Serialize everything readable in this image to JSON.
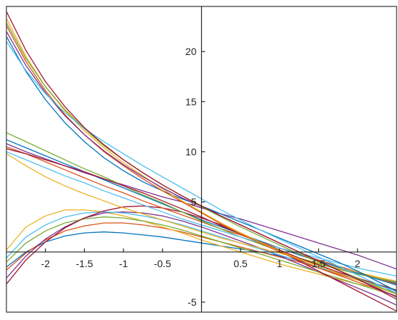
{
  "chart_data": {
    "type": "line",
    "title": "",
    "xlabel": "",
    "ylabel": "",
    "xlim": [
      -2.5,
      2.5
    ],
    "ylim": [
      -6,
      24.5
    ],
    "grid": false,
    "legend": "none",
    "x_ticks": [
      {
        "value": -2,
        "label": "-2"
      },
      {
        "value": -1.5,
        "label": "-1.5"
      },
      {
        "value": -1,
        "label": "-1"
      },
      {
        "value": -0.5,
        "label": "-0.5"
      },
      {
        "value": 0.5,
        "label": "0.5"
      },
      {
        "value": 1,
        "label": "1"
      },
      {
        "value": 1.5,
        "label": "1.5"
      },
      {
        "value": 2,
        "label": "2"
      }
    ],
    "y_ticks": [
      {
        "value": -5,
        "label": "-5"
      },
      {
        "value": 5,
        "label": "5"
      },
      {
        "value": 10,
        "label": "10"
      },
      {
        "value": 15,
        "label": "15"
      },
      {
        "value": 20,
        "label": "20"
      }
    ],
    "palette": [
      "#0072BD",
      "#D95319",
      "#EDB120",
      "#7E2F8E",
      "#77AC30",
      "#4DBEEE",
      "#A2142F"
    ],
    "x": [
      -2.5,
      -2.25,
      -2.0,
      -1.75,
      -1.5,
      -1.25,
      -1.0,
      -0.75,
      -0.5,
      -0.25,
      0.0,
      0.25,
      0.5,
      0.75,
      1.0,
      1.25,
      1.5,
      1.75,
      2.0,
      2.25,
      2.5
    ],
    "series": [
      {
        "color": "#0072BD",
        "values": [
          -1.5,
          0.0,
          1.0,
          1.6,
          1.9,
          2.0,
          1.9,
          1.7,
          1.5,
          1.2,
          0.9,
          0.6,
          0.3,
          0.0,
          -0.4,
          -0.8,
          -1.2,
          -1.6,
          -2.1,
          -2.7,
          -3.3
        ]
      },
      {
        "color": "#D95319",
        "values": [
          -1.8,
          -0.1,
          1.2,
          2.1,
          2.6,
          2.9,
          2.9,
          2.7,
          2.4,
          2.0,
          1.5,
          1.0,
          0.5,
          0.0,
          -0.5,
          -1.0,
          -1.6,
          -2.2,
          -2.8,
          -3.5,
          -4.2
        ]
      },
      {
        "color": "#EDB120",
        "values": [
          0.2,
          2.5,
          3.6,
          4.2,
          4.2,
          4.0,
          3.6,
          3.1,
          2.5,
          1.9,
          1.2,
          0.6,
          0.0,
          -0.6,
          -1.2,
          -1.7,
          -2.2,
          -2.7,
          -3.2,
          -3.6,
          -4.0
        ]
      },
      {
        "color": "#7E2F8E",
        "values": [
          -2.6,
          -0.4,
          1.3,
          2.5,
          3.4,
          3.9,
          4.0,
          3.9,
          3.6,
          3.1,
          2.5,
          1.8,
          1.1,
          0.4,
          -0.4,
          -1.2,
          -2.0,
          -2.8,
          -3.6,
          -4.4,
          -5.3
        ]
      },
      {
        "color": "#77AC30",
        "values": [
          -1.0,
          0.9,
          2.1,
          2.9,
          3.3,
          3.5,
          3.4,
          3.1,
          2.7,
          2.2,
          1.6,
          1.0,
          0.4,
          -0.2,
          -0.8,
          -1.4,
          -2.0,
          -2.6,
          -3.2,
          -3.8,
          -4.4
        ]
      },
      {
        "color": "#4DBEEE",
        "values": [
          -0.6,
          1.5,
          2.7,
          3.5,
          3.9,
          4.0,
          3.9,
          3.6,
          3.2,
          2.7,
          2.1,
          1.5,
          0.9,
          0.3,
          -0.3,
          -0.9,
          -1.5,
          -2.1,
          -2.7,
          -3.3,
          -3.9
        ]
      },
      {
        "color": "#A2142F",
        "values": [
          -3.2,
          -0.8,
          1.0,
          2.4,
          3.4,
          4.1,
          4.5,
          4.6,
          4.4,
          4.0,
          3.4,
          2.7,
          1.9,
          1.0,
          0.1,
          -0.9,
          -1.9,
          -2.9,
          -3.9,
          -4.9,
          -5.9
        ]
      },
      {
        "color": "#0072BD",
        "values": [
          11.2,
          10.4,
          9.6,
          8.8,
          8.0,
          7.2,
          6.4,
          5.6,
          4.8,
          4.0,
          3.2,
          2.5,
          1.8,
          1.1,
          0.4,
          -0.3,
          -0.9,
          -1.5,
          -2.1,
          -2.6,
          -3.1
        ]
      },
      {
        "color": "#D95319",
        "values": [
          10.5,
          9.8,
          9.0,
          8.2,
          7.4,
          6.6,
          5.9,
          5.1,
          4.4,
          3.7,
          3.0,
          2.3,
          1.7,
          1.0,
          0.4,
          -0.2,
          -0.8,
          -1.4,
          -2.0,
          -2.6,
          -3.2
        ]
      },
      {
        "color": "#EDB120",
        "values": [
          9.8,
          8.6,
          7.5,
          6.6,
          5.8,
          5.1,
          4.4,
          3.8,
          3.2,
          2.6,
          2.0,
          1.4,
          0.9,
          0.4,
          -0.1,
          -0.6,
          -1.1,
          -1.6,
          -2.0,
          -2.5,
          -2.9
        ]
      },
      {
        "color": "#7E2F8E",
        "values": [
          10.8,
          10.0,
          9.3,
          8.6,
          7.9,
          7.3,
          6.7,
          6.1,
          5.5,
          5.0,
          4.4,
          3.8,
          3.3,
          2.7,
          2.1,
          1.5,
          0.9,
          0.3,
          -0.3,
          -1.0,
          -1.7
        ]
      },
      {
        "color": "#77AC30",
        "values": [
          11.9,
          11.0,
          10.1,
          9.2,
          8.3,
          7.5,
          6.6,
          5.7,
          4.9,
          4.0,
          3.1,
          2.3,
          1.5,
          0.8,
          0.1,
          -0.6,
          -1.2,
          -1.7,
          -2.2,
          -2.6,
          -3.0
        ]
      },
      {
        "color": "#4DBEEE",
        "values": [
          10.0,
          9.2,
          8.4,
          7.6,
          6.9,
          6.1,
          5.4,
          4.7,
          4.0,
          3.3,
          2.7,
          2.1,
          1.5,
          0.9,
          0.4,
          -0.1,
          -0.6,
          -1.1,
          -1.6,
          -2.0,
          -2.4
        ]
      },
      {
        "color": "#A2142F",
        "values": [
          10.3,
          9.8,
          9.2,
          8.6,
          8.0,
          7.3,
          6.6,
          5.9,
          5.1,
          4.3,
          3.5,
          2.6,
          1.8,
          1.0,
          0.2,
          -0.6,
          -1.3,
          -2.0,
          -2.6,
          -3.2,
          -3.8
        ]
      },
      {
        "color": "#0072BD",
        "values": [
          21.5,
          18.0,
          15.2,
          12.9,
          11.0,
          9.4,
          8.1,
          7.0,
          6.1,
          5.3,
          4.6,
          3.8,
          3.0,
          2.2,
          1.4,
          0.6,
          -0.2,
          -1.0,
          -1.9,
          -2.9,
          -3.9
        ]
      },
      {
        "color": "#D95319",
        "values": [
          22.6,
          19.0,
          16.1,
          13.7,
          11.7,
          10.0,
          8.6,
          7.3,
          6.1,
          5.0,
          3.9,
          2.8,
          1.8,
          0.9,
          0.0,
          -0.8,
          -1.6,
          -2.3,
          -3.0,
          -3.7,
          -4.4
        ]
      },
      {
        "color": "#EDB120",
        "values": [
          23.3,
          19.5,
          16.5,
          14.1,
          12.1,
          10.4,
          8.9,
          7.6,
          6.3,
          5.1,
          4.0,
          2.9,
          1.9,
          1.0,
          0.1,
          -0.7,
          -1.4,
          -2.1,
          -2.8,
          -3.5,
          -4.2
        ]
      },
      {
        "color": "#7E2F8E",
        "values": [
          22.0,
          18.6,
          15.9,
          13.6,
          11.7,
          10.1,
          8.7,
          7.5,
          6.4,
          5.4,
          4.5,
          3.6,
          2.7,
          1.8,
          0.9,
          0.0,
          -0.9,
          -1.8,
          -2.7,
          -3.6,
          -4.5
        ]
      },
      {
        "color": "#77AC30",
        "values": [
          22.9,
          19.3,
          16.5,
          14.2,
          12.3,
          10.6,
          9.2,
          7.9,
          6.7,
          5.6,
          4.5,
          3.5,
          2.5,
          1.6,
          0.7,
          -0.2,
          -1.0,
          -1.8,
          -2.6,
          -3.4,
          -4.2
        ]
      },
      {
        "color": "#4DBEEE",
        "values": [
          21.0,
          18.1,
          15.8,
          13.9,
          12.3,
          11.0,
          9.8,
          8.6,
          7.5,
          6.4,
          5.3,
          4.2,
          3.2,
          2.2,
          1.3,
          0.4,
          -0.5,
          -1.4,
          -2.3,
          -3.2,
          -4.1
        ]
      },
      {
        "color": "#A2142F",
        "values": [
          24.0,
          20.1,
          17.0,
          14.5,
          12.4,
          10.7,
          9.2,
          7.9,
          6.7,
          5.6,
          4.6,
          3.6,
          2.7,
          1.8,
          0.9,
          0.0,
          -0.9,
          -1.8,
          -2.7,
          -3.7,
          -4.7
        ]
      }
    ]
  }
}
